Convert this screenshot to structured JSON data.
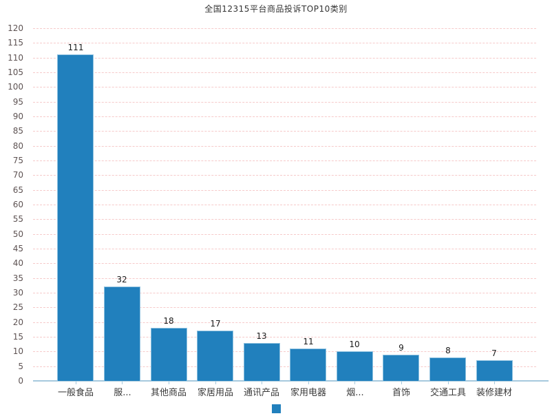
{
  "chart_data": {
    "type": "bar",
    "title": "全国12315平台商品投诉TOP10类别",
    "categories": [
      "一般食品",
      "服...",
      "其他商品",
      "家居用品",
      "通讯产品",
      "家用电器",
      "烟...",
      "首饰",
      "交通工具",
      "装修建材"
    ],
    "values": [
      111,
      32,
      18,
      17,
      13,
      11,
      10,
      9,
      8,
      7
    ],
    "xlabel": "",
    "ylabel": "",
    "ylim": [
      0,
      120
    ],
    "ytick_step": 5,
    "grid": "horizontal-dashed",
    "legend_position": "bottom-center",
    "legend_entries": [
      ""
    ],
    "colors": {
      "bar": "#2180bd",
      "bar_border": "#8fc2e0",
      "gridline": "#f6c9c9",
      "axis_line": "#a6c9dd",
      "y_tick_label": "#5d5252",
      "x_tick_label": "#3a3a3a",
      "value_label": "#1a1a1a",
      "title": "#333333",
      "background": "#ffffff"
    }
  }
}
